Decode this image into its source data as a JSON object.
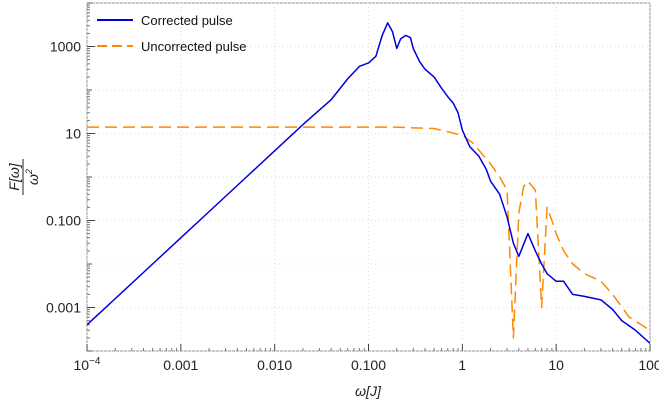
{
  "chart_data": {
    "type": "line",
    "xlabel": "ω[J]",
    "ylabel": {
      "numerator": "F[ω]",
      "denominator": "ω",
      "power": "2"
    },
    "xscale": "log",
    "yscale": "log",
    "xlim": [
      0.0001,
      100
    ],
    "ylim": [
      0.0001,
      10000
    ],
    "grid": "dotted",
    "legend_position": "top-left",
    "x_ticks": [
      {
        "value": 0.0001,
        "label": "10",
        "sup": "−4"
      },
      {
        "value": 0.001,
        "label": "0.001",
        "sup": ""
      },
      {
        "value": 0.01,
        "label": "0.010",
        "sup": ""
      },
      {
        "value": 0.1,
        "label": "0.100",
        "sup": ""
      },
      {
        "value": 1,
        "label": "1",
        "sup": ""
      },
      {
        "value": 10,
        "label": "10",
        "sup": ""
      },
      {
        "value": 100,
        "label": "100",
        "sup": ""
      }
    ],
    "y_ticks": [
      {
        "value": 0.001,
        "label": "0.001"
      },
      {
        "value": 0.1,
        "label": "0.100"
      },
      {
        "value": 10,
        "label": "10"
      },
      {
        "value": 1000,
        "label": "1000"
      }
    ],
    "series": [
      {
        "name": "Corrected pulse",
        "color": "#0000dd",
        "dash": "solid",
        "x": [
          0.0001,
          0.0002,
          0.0005,
          0.001,
          0.002,
          0.005,
          0.01,
          0.02,
          0.04,
          0.06,
          0.08,
          0.1,
          0.12,
          0.14,
          0.16,
          0.18,
          0.2,
          0.22,
          0.25,
          0.28,
          0.3,
          0.35,
          0.4,
          0.5,
          0.6,
          0.7,
          0.8,
          0.9,
          1.0,
          1.2,
          1.5,
          1.8,
          2.0,
          2.5,
          3.0,
          3.5,
          4.0,
          5.0,
          6.0,
          7.0,
          8.0,
          10,
          12,
          15,
          20,
          30,
          40,
          50,
          70,
          100
        ],
        "y": [
          0.0004,
          0.0016,
          0.01,
          0.04,
          0.16,
          1.0,
          4.0,
          16,
          60,
          180,
          350,
          420,
          600,
          1800,
          3500,
          2200,
          900,
          1500,
          1800,
          1600,
          900,
          450,
          300,
          200,
          110,
          70,
          50,
          30,
          12,
          5,
          3,
          1.5,
          0.8,
          0.4,
          0.12,
          0.03,
          0.015,
          0.05,
          0.02,
          0.01,
          0.006,
          0.004,
          0.004,
          0.002,
          0.0018,
          0.0015,
          0.0009,
          0.0005,
          0.0003,
          0.00015
        ]
      },
      {
        "name": "Uncorrected pulse",
        "color": "#ff8800",
        "dash": "dashed",
        "x": [
          0.0001,
          0.001,
          0.01,
          0.1,
          0.2,
          0.3,
          0.5,
          0.7,
          1.0,
          1.3,
          1.6,
          2.0,
          2.5,
          3.0,
          3.5,
          4.0,
          4.5,
          5.0,
          6.0,
          7.0,
          8.0,
          9.0,
          10,
          12,
          15,
          20,
          30,
          40,
          60,
          100
        ],
        "y": [
          14,
          14,
          14,
          14,
          14,
          13.5,
          13,
          11,
          9,
          6,
          3.5,
          2,
          1.0,
          0.5,
          0.0002,
          0.15,
          0.6,
          0.8,
          0.5,
          0.001,
          0.2,
          0.1,
          0.05,
          0.02,
          0.01,
          0.006,
          0.004,
          0.002,
          0.0006,
          0.0003
        ]
      }
    ]
  }
}
